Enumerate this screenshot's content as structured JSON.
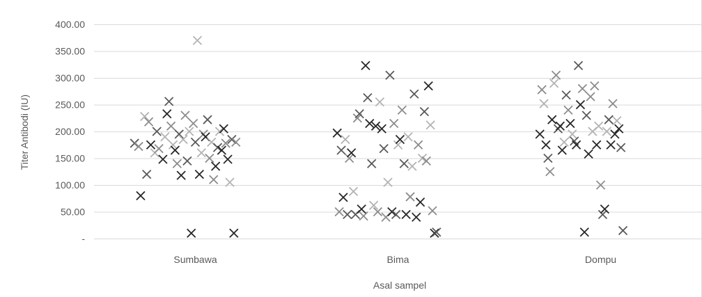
{
  "chart_data": {
    "type": "scatter",
    "title": "",
    "xlabel": "Asal sampel",
    "ylabel": "Titer Antibodi (IU)",
    "ylim": [
      0,
      400
    ],
    "yticks": [
      0,
      50,
      100,
      150,
      200,
      250,
      300,
      350,
      400
    ],
    "ytick_labels": [
      "-",
      "50.00",
      "100.00",
      "150.00",
      "200.00",
      "250.00",
      "300.00",
      "350.00",
      "400.00"
    ],
    "categories": [
      "Sumbawa",
      "Bima",
      "Dompu"
    ],
    "grid": true,
    "legend": "none",
    "marker": "x",
    "shade_colors": [
      "#262626",
      "#595959",
      "#8c8c8c",
      "#b3b3b3"
    ],
    "points": [
      {
        "x": 0.7,
        "y": 178,
        "s": 1
      },
      {
        "x": 0.72,
        "y": 172,
        "s": 2
      },
      {
        "x": 0.73,
        "y": 80,
        "s": 0
      },
      {
        "x": 0.75,
        "y": 228,
        "s": 3
      },
      {
        "x": 0.76,
        "y": 120,
        "s": 1
      },
      {
        "x": 0.77,
        "y": 218,
        "s": 2
      },
      {
        "x": 0.78,
        "y": 175,
        "s": 0
      },
      {
        "x": 0.8,
        "y": 160,
        "s": 3
      },
      {
        "x": 0.81,
        "y": 200,
        "s": 1
      },
      {
        "x": 0.82,
        "y": 168,
        "s": 2
      },
      {
        "x": 0.84,
        "y": 148,
        "s": 0
      },
      {
        "x": 0.85,
        "y": 190,
        "s": 3
      },
      {
        "x": 0.86,
        "y": 233,
        "s": 0
      },
      {
        "x": 0.87,
        "y": 256,
        "s": 1
      },
      {
        "x": 0.88,
        "y": 210,
        "s": 2
      },
      {
        "x": 0.89,
        "y": 175,
        "s": 3
      },
      {
        "x": 0.9,
        "y": 165,
        "s": 0
      },
      {
        "x": 0.91,
        "y": 140,
        "s": 2
      },
      {
        "x": 0.92,
        "y": 195,
        "s": 1
      },
      {
        "x": 0.93,
        "y": 118,
        "s": 0
      },
      {
        "x": 0.94,
        "y": 185,
        "s": 3
      },
      {
        "x": 0.95,
        "y": 230,
        "s": 2
      },
      {
        "x": 0.96,
        "y": 145,
        "s": 1
      },
      {
        "x": 0.97,
        "y": 200,
        "s": 3
      },
      {
        "x": 0.98,
        "y": 10,
        "s": 0
      },
      {
        "x": 0.99,
        "y": 215,
        "s": 2
      },
      {
        "x": 1.0,
        "y": 180,
        "s": 1
      },
      {
        "x": 1.01,
        "y": 370,
        "s": 3
      },
      {
        "x": 1.02,
        "y": 120,
        "s": 0
      },
      {
        "x": 1.03,
        "y": 160,
        "s": 3
      },
      {
        "x": 1.04,
        "y": 195,
        "s": 2
      },
      {
        "x": 1.05,
        "y": 190,
        "s": 0
      },
      {
        "x": 1.06,
        "y": 222,
        "s": 1
      },
      {
        "x": 1.07,
        "y": 150,
        "s": 2
      },
      {
        "x": 1.08,
        "y": 180,
        "s": 3
      },
      {
        "x": 1.09,
        "y": 110,
        "s": 2
      },
      {
        "x": 1.1,
        "y": 135,
        "s": 0
      },
      {
        "x": 1.11,
        "y": 170,
        "s": 1
      },
      {
        "x": 1.12,
        "y": 200,
        "s": 3
      },
      {
        "x": 1.13,
        "y": 165,
        "s": 0
      },
      {
        "x": 1.14,
        "y": 205,
        "s": 0
      },
      {
        "x": 1.15,
        "y": 178,
        "s": 2
      },
      {
        "x": 1.16,
        "y": 148,
        "s": 0
      },
      {
        "x": 1.17,
        "y": 105,
        "s": 3
      },
      {
        "x": 1.18,
        "y": 185,
        "s": 1
      },
      {
        "x": 1.19,
        "y": 10,
        "s": 0
      },
      {
        "x": 1.2,
        "y": 180,
        "s": 2
      },
      {
        "x": 1.7,
        "y": 197,
        "s": 0
      },
      {
        "x": 1.71,
        "y": 50,
        "s": 2
      },
      {
        "x": 1.72,
        "y": 165,
        "s": 1
      },
      {
        "x": 1.73,
        "y": 77,
        "s": 0
      },
      {
        "x": 1.74,
        "y": 185,
        "s": 3
      },
      {
        "x": 1.75,
        "y": 45,
        "s": 1
      },
      {
        "x": 1.76,
        "y": 150,
        "s": 2
      },
      {
        "x": 1.77,
        "y": 160,
        "s": 0
      },
      {
        "x": 1.78,
        "y": 88,
        "s": 3
      },
      {
        "x": 1.79,
        "y": 45,
        "s": 1
      },
      {
        "x": 1.8,
        "y": 225,
        "s": 2
      },
      {
        "x": 1.81,
        "y": 233,
        "s": 1
      },
      {
        "x": 1.82,
        "y": 55,
        "s": 0
      },
      {
        "x": 1.83,
        "y": 42,
        "s": 2
      },
      {
        "x": 1.84,
        "y": 323,
        "s": 0
      },
      {
        "x": 1.85,
        "y": 263,
        "s": 1
      },
      {
        "x": 1.86,
        "y": 215,
        "s": 0
      },
      {
        "x": 1.87,
        "y": 140,
        "s": 1
      },
      {
        "x": 1.88,
        "y": 62,
        "s": 3
      },
      {
        "x": 1.89,
        "y": 210,
        "s": 0
      },
      {
        "x": 1.9,
        "y": 50,
        "s": 2
      },
      {
        "x": 1.91,
        "y": 255,
        "s": 3
      },
      {
        "x": 1.92,
        "y": 205,
        "s": 0
      },
      {
        "x": 1.93,
        "y": 168,
        "s": 1
      },
      {
        "x": 1.94,
        "y": 40,
        "s": 2
      },
      {
        "x": 1.95,
        "y": 105,
        "s": 3
      },
      {
        "x": 1.96,
        "y": 305,
        "s": 1
      },
      {
        "x": 1.97,
        "y": 50,
        "s": 0
      },
      {
        "x": 1.98,
        "y": 215,
        "s": 2
      },
      {
        "x": 1.99,
        "y": 45,
        "s": 1
      },
      {
        "x": 2.0,
        "y": 175,
        "s": 3
      },
      {
        "x": 2.01,
        "y": 185,
        "s": 0
      },
      {
        "x": 2.02,
        "y": 240,
        "s": 2
      },
      {
        "x": 2.03,
        "y": 140,
        "s": 1
      },
      {
        "x": 2.04,
        "y": 45,
        "s": 0
      },
      {
        "x": 2.05,
        "y": 190,
        "s": 3
      },
      {
        "x": 2.06,
        "y": 78,
        "s": 2
      },
      {
        "x": 2.07,
        "y": 135,
        "s": 3
      },
      {
        "x": 2.08,
        "y": 270,
        "s": 1
      },
      {
        "x": 2.09,
        "y": 40,
        "s": 0
      },
      {
        "x": 2.1,
        "y": 175,
        "s": 2
      },
      {
        "x": 2.11,
        "y": 68,
        "s": 0
      },
      {
        "x": 2.12,
        "y": 150,
        "s": 3
      },
      {
        "x": 2.13,
        "y": 237,
        "s": 1
      },
      {
        "x": 2.14,
        "y": 145,
        "s": 2
      },
      {
        "x": 2.15,
        "y": 285,
        "s": 0
      },
      {
        "x": 2.16,
        "y": 212,
        "s": 3
      },
      {
        "x": 2.17,
        "y": 52,
        "s": 2
      },
      {
        "x": 2.18,
        "y": 10,
        "s": 0
      },
      {
        "x": 2.19,
        "y": 12,
        "s": 1
      },
      {
        "x": 2.7,
        "y": 195,
        "s": 0
      },
      {
        "x": 2.71,
        "y": 278,
        "s": 2
      },
      {
        "x": 2.72,
        "y": 252,
        "s": 3
      },
      {
        "x": 2.73,
        "y": 175,
        "s": 0
      },
      {
        "x": 2.74,
        "y": 150,
        "s": 1
      },
      {
        "x": 2.75,
        "y": 125,
        "s": 2
      },
      {
        "x": 2.76,
        "y": 222,
        "s": 0
      },
      {
        "x": 2.77,
        "y": 290,
        "s": 3
      },
      {
        "x": 2.78,
        "y": 305,
        "s": 2
      },
      {
        "x": 2.79,
        "y": 205,
        "s": 1
      },
      {
        "x": 2.8,
        "y": 210,
        "s": 0
      },
      {
        "x": 2.81,
        "y": 165,
        "s": 0
      },
      {
        "x": 2.82,
        "y": 180,
        "s": 3
      },
      {
        "x": 2.83,
        "y": 268,
        "s": 1
      },
      {
        "x": 2.84,
        "y": 240,
        "s": 2
      },
      {
        "x": 2.85,
        "y": 215,
        "s": 0
      },
      {
        "x": 2.86,
        "y": 195,
        "s": 3
      },
      {
        "x": 2.87,
        "y": 182,
        "s": 1
      },
      {
        "x": 2.88,
        "y": 175,
        "s": 0
      },
      {
        "x": 2.89,
        "y": 323,
        "s": 1
      },
      {
        "x": 2.9,
        "y": 250,
        "s": 0
      },
      {
        "x": 2.91,
        "y": 280,
        "s": 2
      },
      {
        "x": 2.92,
        "y": 12,
        "s": 0
      },
      {
        "x": 2.93,
        "y": 230,
        "s": 1
      },
      {
        "x": 2.94,
        "y": 158,
        "s": 0
      },
      {
        "x": 2.95,
        "y": 265,
        "s": 2
      },
      {
        "x": 2.96,
        "y": 200,
        "s": 3
      },
      {
        "x": 2.97,
        "y": 285,
        "s": 2
      },
      {
        "x": 2.98,
        "y": 175,
        "s": 0
      },
      {
        "x": 2.99,
        "y": 210,
        "s": 3
      },
      {
        "x": 3.0,
        "y": 100,
        "s": 2
      },
      {
        "x": 3.01,
        "y": 45,
        "s": 1
      },
      {
        "x": 3.02,
        "y": 55,
        "s": 0
      },
      {
        "x": 3.03,
        "y": 200,
        "s": 3
      },
      {
        "x": 3.04,
        "y": 222,
        "s": 1
      },
      {
        "x": 3.05,
        "y": 175,
        "s": 0
      },
      {
        "x": 3.06,
        "y": 252,
        "s": 2
      },
      {
        "x": 3.07,
        "y": 195,
        "s": 0
      },
      {
        "x": 3.08,
        "y": 220,
        "s": 3
      },
      {
        "x": 3.09,
        "y": 205,
        "s": 0
      },
      {
        "x": 3.1,
        "y": 170,
        "s": 1
      },
      {
        "x": 3.11,
        "y": 15,
        "s": 1
      }
    ]
  }
}
